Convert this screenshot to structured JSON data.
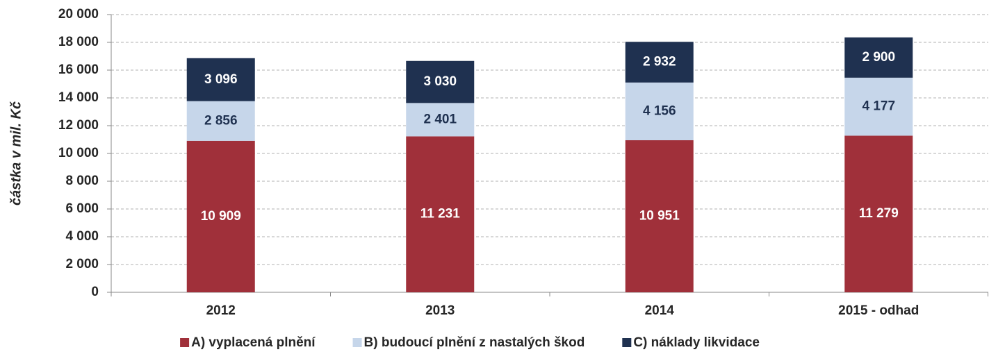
{
  "chart_data": {
    "type": "stacked_bar",
    "y_label": "částka v mil. Kč",
    "categories": [
      "2012",
      "2013",
      "2014",
      "2015 - odhad"
    ],
    "series": [
      {
        "name": "A) vyplacená plnění",
        "color": "#a0303a",
        "label_color": "#ffffff",
        "values": [
          10909,
          11231,
          10951,
          11279
        ],
        "value_labels": [
          "10 909",
          "11 231",
          "10 951",
          "11 279"
        ]
      },
      {
        "name": "B) budoucí plnění z nastalých škod",
        "color": "#c6d6ea",
        "label_color": "#1f3150",
        "values": [
          2856,
          2401,
          4156,
          4177
        ],
        "value_labels": [
          "2 856",
          "2 401",
          "4 156",
          "4 177"
        ]
      },
      {
        "name": "C) náklady likvidace",
        "color": "#1f3150",
        "label_color": "#ffffff",
        "values": [
          3096,
          3030,
          2932,
          2900
        ],
        "value_labels": [
          "3 096",
          "3 030",
          "2 932",
          "2 900"
        ]
      }
    ],
    "ylim": [
      0,
      20000
    ],
    "yticks": [
      0,
      {
        "value": 2000,
        "label": "2 000"
      },
      {
        "value": 4000,
        "label": "4 000"
      },
      {
        "value": 6000,
        "label": "6 000"
      },
      {
        "value": 8000,
        "label": "8 000"
      },
      {
        "value": 10000,
        "label": "10 000"
      },
      {
        "value": 12000,
        "label": "12 000"
      },
      {
        "value": 14000,
        "label": "14 000"
      },
      {
        "value": 16000,
        "label": "16 000"
      },
      {
        "value": 18000,
        "label": "18 000"
      },
      {
        "value": 20000,
        "label": "20 000"
      }
    ],
    "grid": true,
    "legend": "bottom"
  }
}
